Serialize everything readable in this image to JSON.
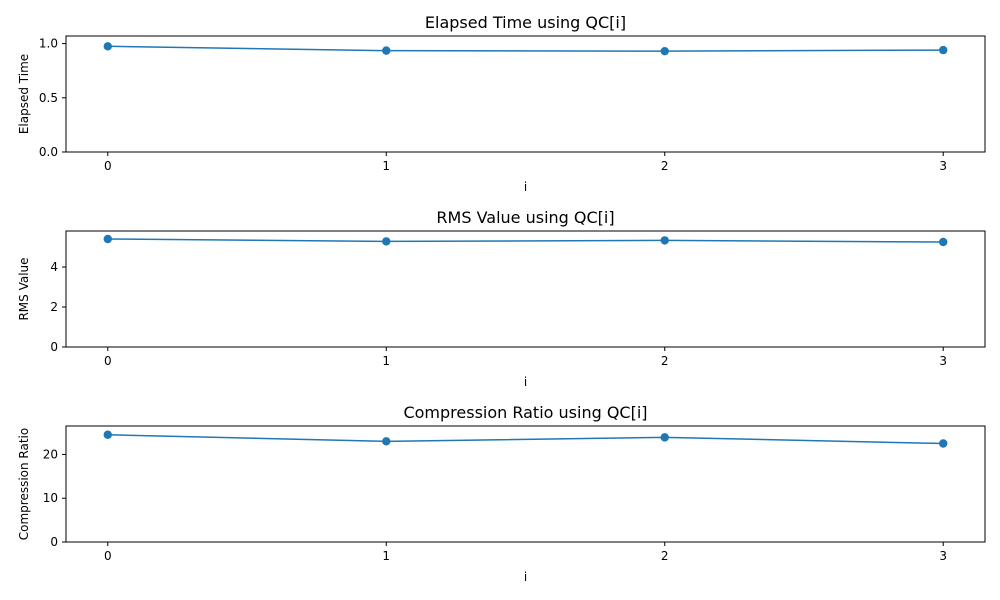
{
  "chart_data": [
    {
      "type": "line",
      "title": "Elapsed Time using QC[i]",
      "xlabel": "i",
      "ylabel": "Elapsed Time",
      "x": [
        0,
        1,
        2,
        3
      ],
      "x_tick_labels": [
        "0",
        "1",
        "2",
        "3"
      ],
      "ylim": [
        0,
        1.07
      ],
      "y_ticks": [
        0.0,
        0.5,
        1.0
      ],
      "y_tick_labels": [
        "0.0",
        "0.5",
        "1.0"
      ],
      "series": [
        {
          "values": [
            0.975,
            0.935,
            0.93,
            0.94
          ],
          "color": "#1f77b4"
        }
      ],
      "grid": false
    },
    {
      "type": "line",
      "title": "RMS Value using QC[i]",
      "xlabel": "i",
      "ylabel": "RMS Value",
      "x": [
        0,
        1,
        2,
        3
      ],
      "x_tick_labels": [
        "0",
        "1",
        "2",
        "3"
      ],
      "ylim": [
        0,
        5.8
      ],
      "y_ticks": [
        0,
        2,
        4
      ],
      "y_tick_labels": [
        "0",
        "2",
        "4"
      ],
      "series": [
        {
          "values": [
            5.4,
            5.28,
            5.33,
            5.25
          ],
          "color": "#1f77b4"
        }
      ],
      "grid": false
    },
    {
      "type": "line",
      "title": "Compression Ratio using QC[i]",
      "xlabel": "i",
      "ylabel": "Compression Ratio",
      "x": [
        0,
        1,
        2,
        3
      ],
      "x_tick_labels": [
        "0",
        "1",
        "2",
        "3"
      ],
      "ylim": [
        0,
        26.5
      ],
      "y_ticks": [
        0,
        10,
        20
      ],
      "y_tick_labels": [
        "0",
        "10",
        "20"
      ],
      "series": [
        {
          "values": [
            24.5,
            23.0,
            23.9,
            22.5
          ],
          "color": "#1f77b4"
        }
      ],
      "grid": false
    }
  ]
}
